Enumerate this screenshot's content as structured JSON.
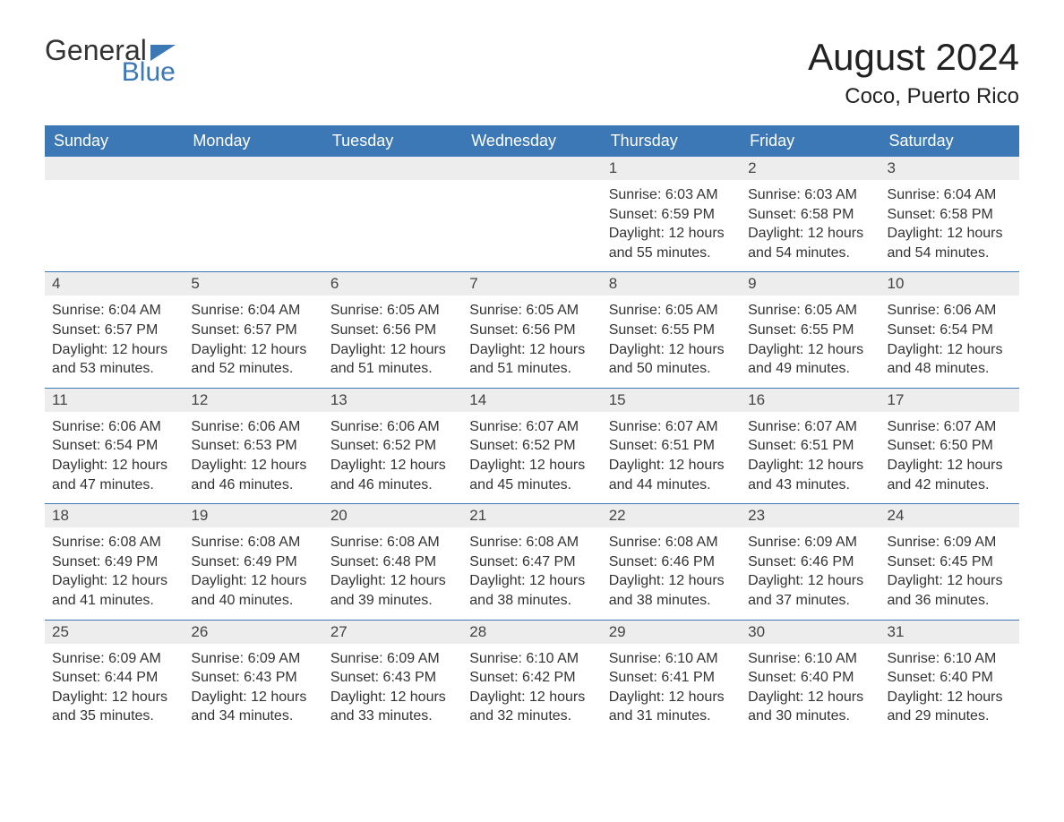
{
  "brand": {
    "general": "General",
    "blue": "Blue",
    "accent_color": "#3b78b5"
  },
  "title": "August 2024",
  "location": "Coco, Puerto Rico",
  "days_of_week": [
    "Sunday",
    "Monday",
    "Tuesday",
    "Wednesday",
    "Thursday",
    "Friday",
    "Saturday"
  ],
  "colors": {
    "header_bg": "#3b78b5",
    "header_text": "#ffffff",
    "daynum_bg": "#ededed",
    "text": "#333333",
    "rule": "#3b78b5"
  },
  "fonts": {
    "title_size_pt": 42,
    "location_size_pt": 24,
    "dow_size_pt": 18,
    "body_size_pt": 16
  },
  "weeks": [
    [
      {
        "empty": true
      },
      {
        "empty": true
      },
      {
        "empty": true
      },
      {
        "empty": true
      },
      {
        "num": "1",
        "sunrise": "Sunrise: 6:03 AM",
        "sunset": "Sunset: 6:59 PM",
        "daylight": "Daylight: 12 hours and 55 minutes."
      },
      {
        "num": "2",
        "sunrise": "Sunrise: 6:03 AM",
        "sunset": "Sunset: 6:58 PM",
        "daylight": "Daylight: 12 hours and 54 minutes."
      },
      {
        "num": "3",
        "sunrise": "Sunrise: 6:04 AM",
        "sunset": "Sunset: 6:58 PM",
        "daylight": "Daylight: 12 hours and 54 minutes."
      }
    ],
    [
      {
        "num": "4",
        "sunrise": "Sunrise: 6:04 AM",
        "sunset": "Sunset: 6:57 PM",
        "daylight": "Daylight: 12 hours and 53 minutes."
      },
      {
        "num": "5",
        "sunrise": "Sunrise: 6:04 AM",
        "sunset": "Sunset: 6:57 PM",
        "daylight": "Daylight: 12 hours and 52 minutes."
      },
      {
        "num": "6",
        "sunrise": "Sunrise: 6:05 AM",
        "sunset": "Sunset: 6:56 PM",
        "daylight": "Daylight: 12 hours and 51 minutes."
      },
      {
        "num": "7",
        "sunrise": "Sunrise: 6:05 AM",
        "sunset": "Sunset: 6:56 PM",
        "daylight": "Daylight: 12 hours and 51 minutes."
      },
      {
        "num": "8",
        "sunrise": "Sunrise: 6:05 AM",
        "sunset": "Sunset: 6:55 PM",
        "daylight": "Daylight: 12 hours and 50 minutes."
      },
      {
        "num": "9",
        "sunrise": "Sunrise: 6:05 AM",
        "sunset": "Sunset: 6:55 PM",
        "daylight": "Daylight: 12 hours and 49 minutes."
      },
      {
        "num": "10",
        "sunrise": "Sunrise: 6:06 AM",
        "sunset": "Sunset: 6:54 PM",
        "daylight": "Daylight: 12 hours and 48 minutes."
      }
    ],
    [
      {
        "num": "11",
        "sunrise": "Sunrise: 6:06 AM",
        "sunset": "Sunset: 6:54 PM",
        "daylight": "Daylight: 12 hours and 47 minutes."
      },
      {
        "num": "12",
        "sunrise": "Sunrise: 6:06 AM",
        "sunset": "Sunset: 6:53 PM",
        "daylight": "Daylight: 12 hours and 46 minutes."
      },
      {
        "num": "13",
        "sunrise": "Sunrise: 6:06 AM",
        "sunset": "Sunset: 6:52 PM",
        "daylight": "Daylight: 12 hours and 46 minutes."
      },
      {
        "num": "14",
        "sunrise": "Sunrise: 6:07 AM",
        "sunset": "Sunset: 6:52 PM",
        "daylight": "Daylight: 12 hours and 45 minutes."
      },
      {
        "num": "15",
        "sunrise": "Sunrise: 6:07 AM",
        "sunset": "Sunset: 6:51 PM",
        "daylight": "Daylight: 12 hours and 44 minutes."
      },
      {
        "num": "16",
        "sunrise": "Sunrise: 6:07 AM",
        "sunset": "Sunset: 6:51 PM",
        "daylight": "Daylight: 12 hours and 43 minutes."
      },
      {
        "num": "17",
        "sunrise": "Sunrise: 6:07 AM",
        "sunset": "Sunset: 6:50 PM",
        "daylight": "Daylight: 12 hours and 42 minutes."
      }
    ],
    [
      {
        "num": "18",
        "sunrise": "Sunrise: 6:08 AM",
        "sunset": "Sunset: 6:49 PM",
        "daylight": "Daylight: 12 hours and 41 minutes."
      },
      {
        "num": "19",
        "sunrise": "Sunrise: 6:08 AM",
        "sunset": "Sunset: 6:49 PM",
        "daylight": "Daylight: 12 hours and 40 minutes."
      },
      {
        "num": "20",
        "sunrise": "Sunrise: 6:08 AM",
        "sunset": "Sunset: 6:48 PM",
        "daylight": "Daylight: 12 hours and 39 minutes."
      },
      {
        "num": "21",
        "sunrise": "Sunrise: 6:08 AM",
        "sunset": "Sunset: 6:47 PM",
        "daylight": "Daylight: 12 hours and 38 minutes."
      },
      {
        "num": "22",
        "sunrise": "Sunrise: 6:08 AM",
        "sunset": "Sunset: 6:46 PM",
        "daylight": "Daylight: 12 hours and 38 minutes."
      },
      {
        "num": "23",
        "sunrise": "Sunrise: 6:09 AM",
        "sunset": "Sunset: 6:46 PM",
        "daylight": "Daylight: 12 hours and 37 minutes."
      },
      {
        "num": "24",
        "sunrise": "Sunrise: 6:09 AM",
        "sunset": "Sunset: 6:45 PM",
        "daylight": "Daylight: 12 hours and 36 minutes."
      }
    ],
    [
      {
        "num": "25",
        "sunrise": "Sunrise: 6:09 AM",
        "sunset": "Sunset: 6:44 PM",
        "daylight": "Daylight: 12 hours and 35 minutes."
      },
      {
        "num": "26",
        "sunrise": "Sunrise: 6:09 AM",
        "sunset": "Sunset: 6:43 PM",
        "daylight": "Daylight: 12 hours and 34 minutes."
      },
      {
        "num": "27",
        "sunrise": "Sunrise: 6:09 AM",
        "sunset": "Sunset: 6:43 PM",
        "daylight": "Daylight: 12 hours and 33 minutes."
      },
      {
        "num": "28",
        "sunrise": "Sunrise: 6:10 AM",
        "sunset": "Sunset: 6:42 PM",
        "daylight": "Daylight: 12 hours and 32 minutes."
      },
      {
        "num": "29",
        "sunrise": "Sunrise: 6:10 AM",
        "sunset": "Sunset: 6:41 PM",
        "daylight": "Daylight: 12 hours and 31 minutes."
      },
      {
        "num": "30",
        "sunrise": "Sunrise: 6:10 AM",
        "sunset": "Sunset: 6:40 PM",
        "daylight": "Daylight: 12 hours and 30 minutes."
      },
      {
        "num": "31",
        "sunrise": "Sunrise: 6:10 AM",
        "sunset": "Sunset: 6:40 PM",
        "daylight": "Daylight: 12 hours and 29 minutes."
      }
    ]
  ]
}
